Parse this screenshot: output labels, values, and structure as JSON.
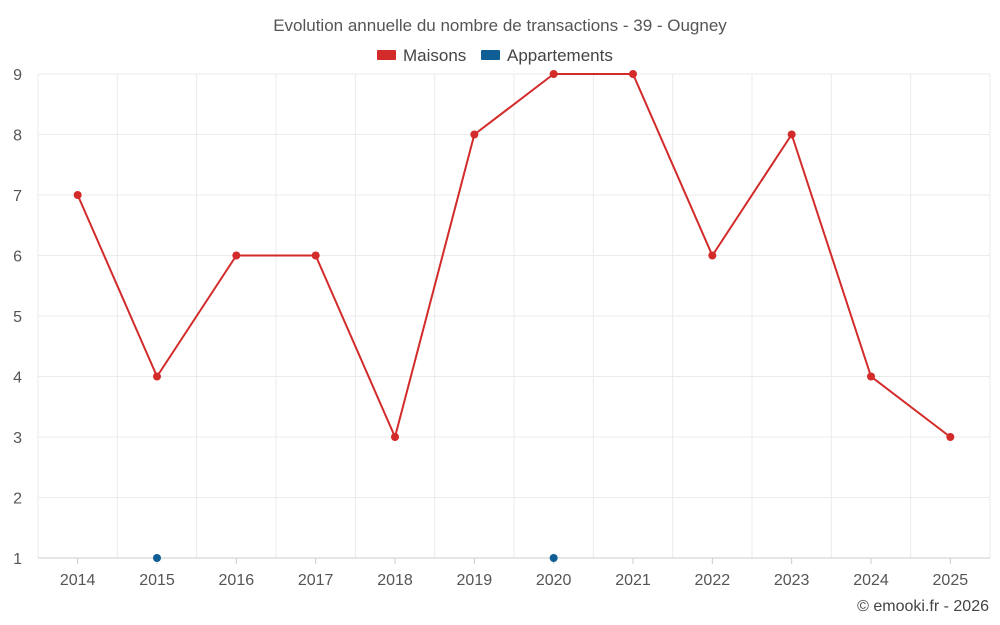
{
  "chart_data": {
    "type": "line",
    "title": "Evolution annuelle du nombre de transactions - 39 - Ougney",
    "categories": [
      "2014",
      "2015",
      "2016",
      "2017",
      "2018",
      "2019",
      "2020",
      "2021",
      "2022",
      "2023",
      "2024",
      "2025"
    ],
    "series": [
      {
        "name": "Maisons",
        "color": "#d32a2a",
        "values": [
          7,
          4,
          6,
          6,
          3,
          8,
          9,
          9,
          6,
          8,
          4,
          3
        ]
      },
      {
        "name": "Appartements",
        "color": "#0f5e96",
        "values": [
          null,
          1,
          null,
          null,
          null,
          null,
          1,
          null,
          null,
          null,
          null,
          null
        ]
      }
    ],
    "ylim": [
      1,
      9
    ],
    "yticks": [
      "1",
      "2",
      "3",
      "4",
      "5",
      "6",
      "7",
      "8",
      "9"
    ],
    "xlabel": "",
    "ylabel": "",
    "grid": true,
    "legend_position": "top-center",
    "credit": "© emooki.fr - 2026"
  }
}
